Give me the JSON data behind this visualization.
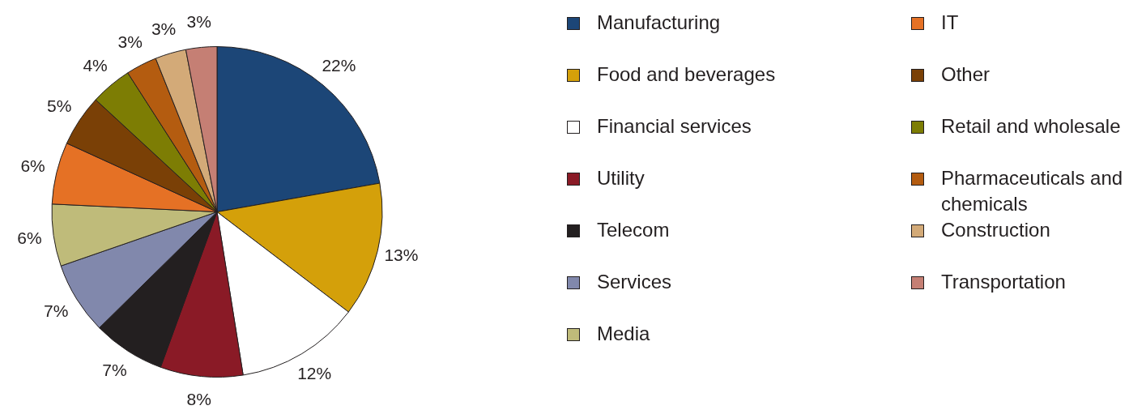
{
  "chart_data": {
    "type": "pie",
    "categories": [
      "Manufacturing",
      "Food and beverages",
      "Financial services",
      "Utility",
      "Telecom",
      "Services",
      "Media",
      "IT",
      "Other",
      "Retail and wholesale",
      "Pharmaceuticals and chemicals",
      "Construction",
      "Transportation"
    ],
    "values": [
      22,
      13,
      12,
      8,
      7,
      7,
      6,
      6,
      5,
      4,
      3,
      3,
      3
    ],
    "colors": [
      "#1c4677",
      "#d4a00a",
      "#ffffff",
      "#8a1a26",
      "#231f20",
      "#8188ac",
      "#bfbb7a",
      "#e57125",
      "#7a4006",
      "#7d7d04",
      "#b45c10",
      "#d3aa78",
      "#c57f74"
    ],
    "value_labels": [
      "22%",
      "13%",
      "12%",
      "8%",
      "7%",
      "7%",
      "6%",
      "6%",
      "5%",
      "4%",
      "3%",
      "3%",
      "3%"
    ],
    "legend": "right"
  }
}
